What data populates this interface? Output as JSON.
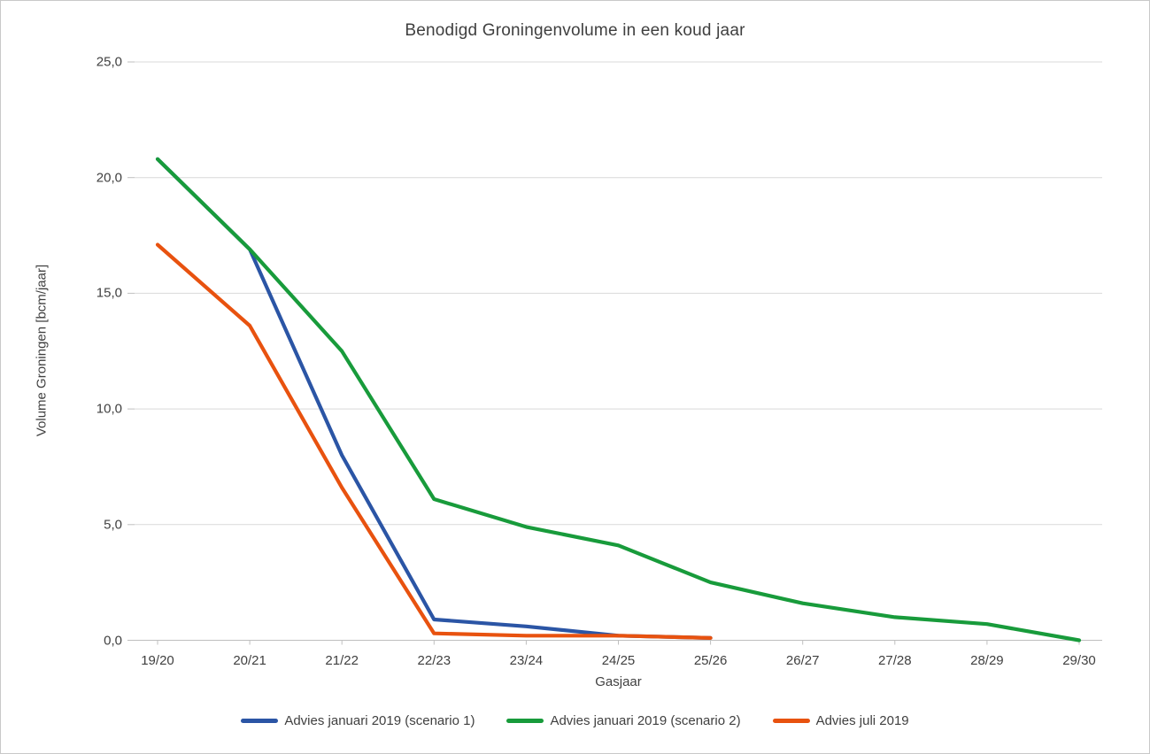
{
  "chart_data": {
    "type": "line",
    "title": "Benodigd Groningenvolume in een koud jaar",
    "xlabel": "Gasjaar",
    "ylabel": "Volume Groningen [bcm/jaar]",
    "categories": [
      "19/20",
      "20/21",
      "21/22",
      "22/23",
      "23/24",
      "24/25",
      "25/26",
      "26/27",
      "27/28",
      "28/29",
      "29/30"
    ],
    "series": [
      {
        "name": "Advies januari 2019 (scenario 1)",
        "color": "#2B55A5",
        "values": [
          20.8,
          16.9,
          8.0,
          0.9,
          0.6,
          0.2,
          0.1,
          null,
          null,
          null,
          null
        ]
      },
      {
        "name": "Advies januari 2019 (scenario 2)",
        "color": "#189B3B",
        "values": [
          20.8,
          16.9,
          12.5,
          6.1,
          4.9,
          4.1,
          2.5,
          1.6,
          1.0,
          0.7,
          0.0
        ]
      },
      {
        "name": "Advies juli 2019",
        "color": "#E8520F",
        "values": [
          17.1,
          13.6,
          6.6,
          0.3,
          0.2,
          0.2,
          0.1,
          null,
          null,
          null,
          null
        ]
      }
    ],
    "ylim": [
      0,
      25
    ],
    "ytick_step": 5,
    "ytick_labels": [
      "0,0",
      "5,0",
      "10,0",
      "15,0",
      "20,0",
      "25,0"
    ],
    "grid": true,
    "legend_position": "bottom",
    "colors": {
      "gridline": "#D9D9D9",
      "axis": "#BFBFBF",
      "text": "#404040"
    }
  }
}
